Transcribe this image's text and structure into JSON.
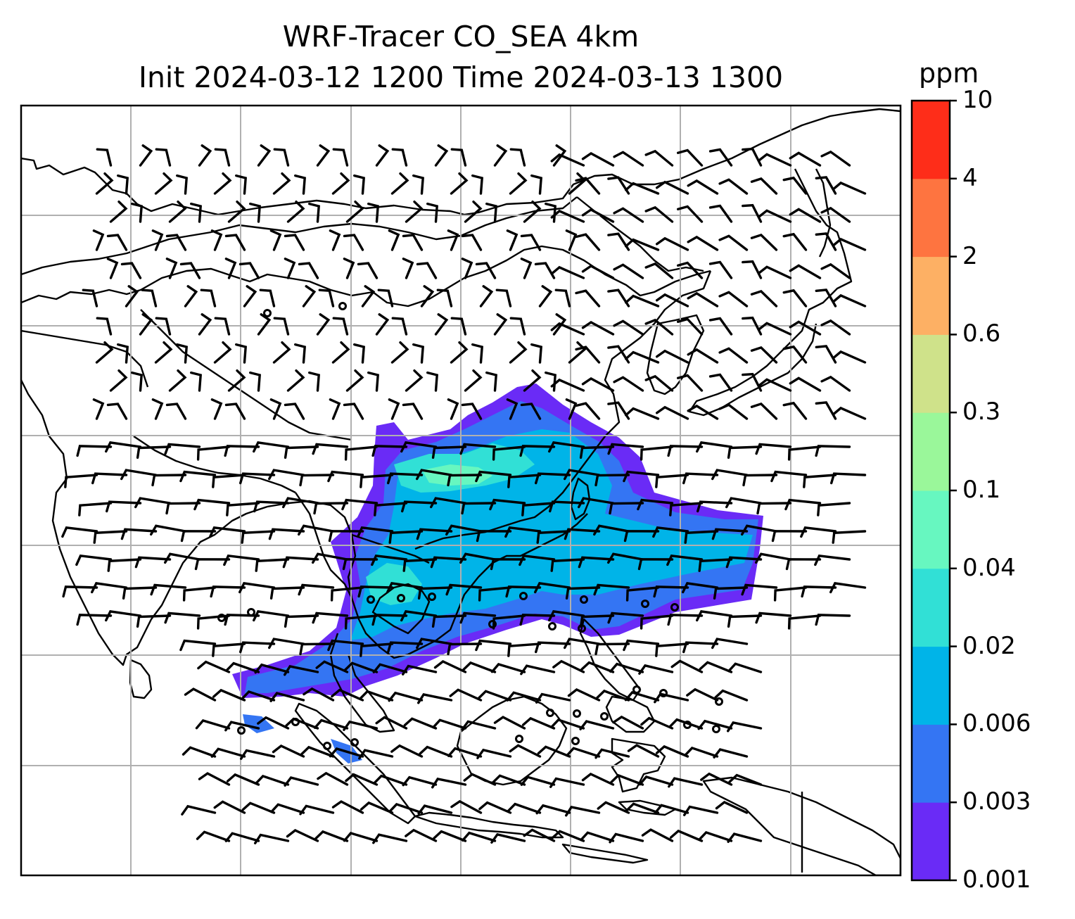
{
  "title": {
    "line1": "WRF-Tracer CO_SEA 4km",
    "line2": "Init 2024-03-12 1200 Time 2024-03-13 1300"
  },
  "colorbar": {
    "units": "ppm",
    "levels": [
      "0.001",
      "0.003",
      "0.006",
      "0.02",
      "0.04",
      "0.1",
      "0.3",
      "0.6",
      "2",
      "4",
      "10"
    ],
    "colors": [
      "#6a2bf6",
      "#3475f3",
      "#00b4e8",
      "#31e0d6",
      "#67f7c0",
      "#9af79a",
      "#cfe28a",
      "#fdb064",
      "#fe7440",
      "#fe2d19"
    ]
  },
  "map": {
    "type": "filled contour map with wind barbs",
    "field": "CO tracer concentration",
    "units": "ppm",
    "gridlines": true,
    "coastlines": true
  }
}
